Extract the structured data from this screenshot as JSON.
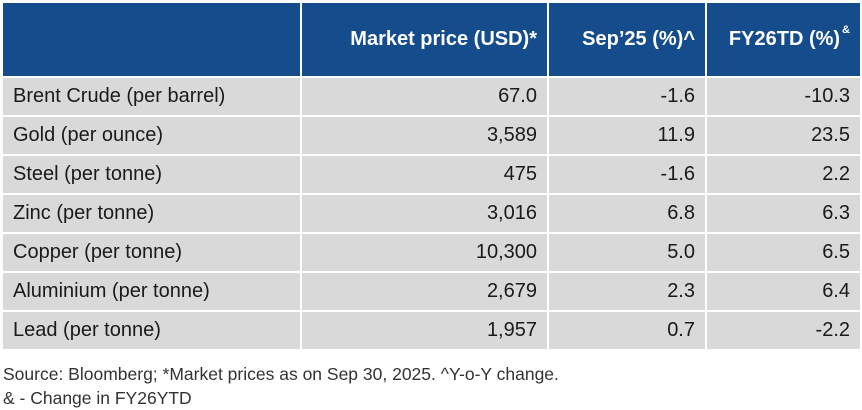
{
  "chart_data": {
    "type": "table",
    "columns": [
      "",
      "Market price (USD)*",
      "Sep’25 (%)^",
      "FY26TD (%)"
    ],
    "header_superscript": "&",
    "rows": [
      {
        "name": "Brent Crude (per barrel)",
        "price": "67.0",
        "sep25": "-1.6",
        "fy26td": "-10.3"
      },
      {
        "name": "Gold (per ounce)",
        "price": "3,589",
        "sep25": "11.9",
        "fy26td": "23.5"
      },
      {
        "name": "Steel (per tonne)",
        "price": "475",
        "sep25": "-1.6",
        "fy26td": "2.2"
      },
      {
        "name": "Zinc (per tonne)",
        "price": "3,016",
        "sep25": "6.8",
        "fy26td": "6.3"
      },
      {
        "name": "Copper (per tonne)",
        "price": "10,300",
        "sep25": "5.0",
        "fy26td": "6.5"
      },
      {
        "name": "Aluminium (per tonne)",
        "price": "2,679",
        "sep25": "2.3",
        "fy26td": "6.4"
      },
      {
        "name": "Lead (per tonne)",
        "price": "1,957",
        "sep25": "0.7",
        "fy26td": "-2.2"
      }
    ]
  },
  "footnotes": {
    "line1": "Source: Bloomberg; *Market prices as on Sep 30, 2025. ^Y-o-Y change.",
    "line2": "& - Change in FY26YTD"
  },
  "colors": {
    "header_bg": "#154c8c",
    "header_text": "#ffffff",
    "row_bg": "#d9d9d9"
  }
}
